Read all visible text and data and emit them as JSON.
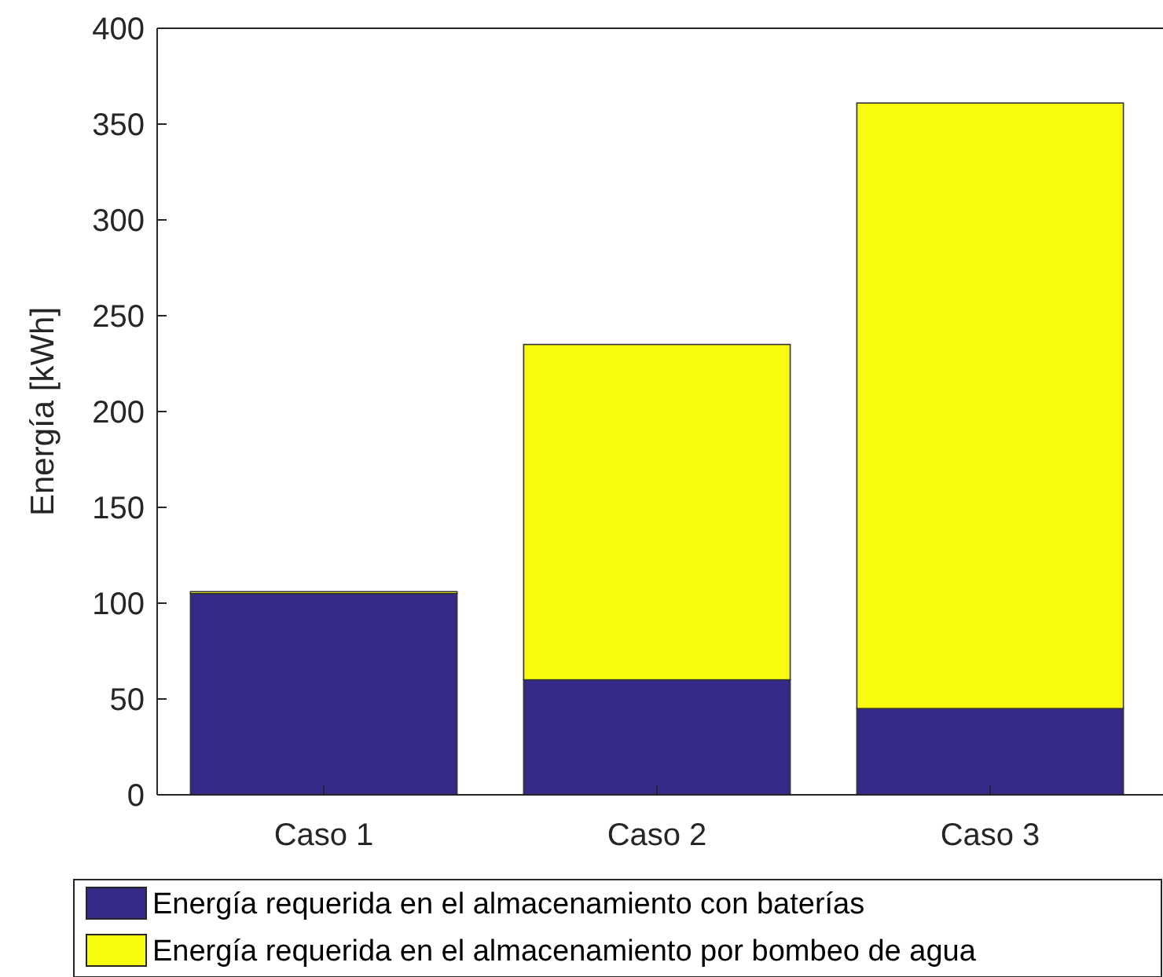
{
  "chart_data": {
    "type": "bar",
    "ylabel": "Energía [kWh]",
    "categories": [
      "Caso 1",
      "Caso 2",
      "Caso 3"
    ],
    "stacked": true,
    "series": [
      {
        "name": "Energía requerida en el almacenamiento con baterías",
        "color": "#352a87",
        "values": [
          105,
          60,
          45
        ]
      },
      {
        "name": "Energía requerida en el almacenamiento por bombeo de agua",
        "color": "#f9fb0e",
        "values": [
          1,
          175,
          316
        ]
      }
    ],
    "ylim": [
      0,
      400
    ],
    "yticks": [
      0,
      50,
      100,
      150,
      200,
      250,
      300,
      350,
      400
    ],
    "legend": "bottom"
  }
}
